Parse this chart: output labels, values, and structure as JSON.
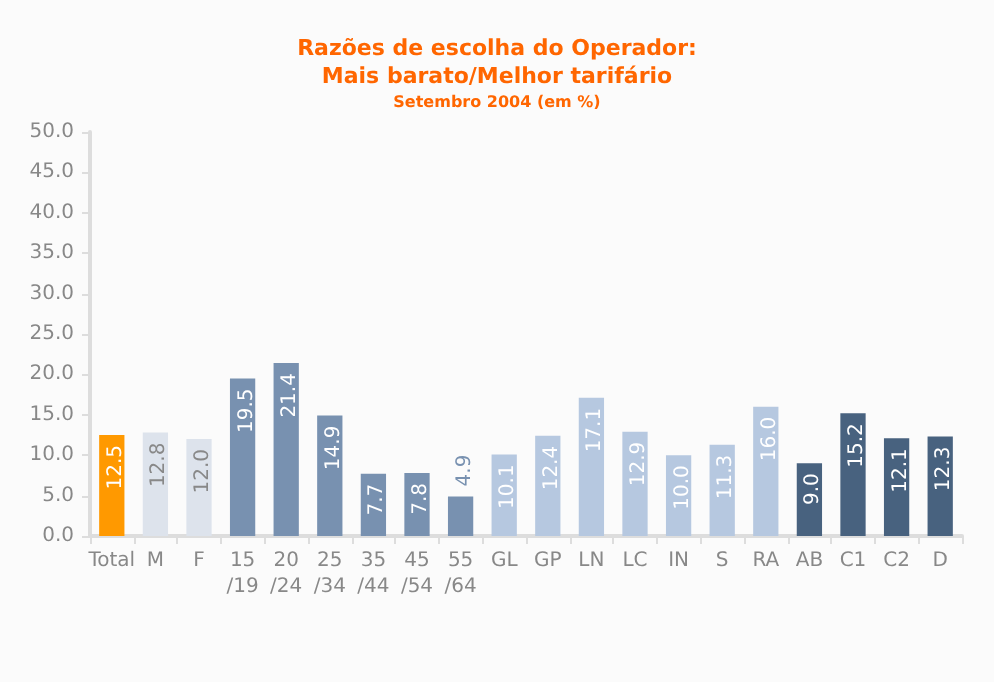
{
  "chart_data": {
    "type": "bar",
    "title": "Razões de escolha do Operador:\nMais barato/Melhor tarifário",
    "subtitle": "Setembro 2004 (em %)",
    "categories": [
      "Total",
      "M",
      "F",
      "15\n/19",
      "20\n/24",
      "25\n/34",
      "35\n/44",
      "45\n/54",
      "55\n/64",
      "GL",
      "GP",
      "LN",
      "LC",
      "IN",
      "S",
      "RA",
      "AB",
      "C1",
      "C2",
      "D"
    ],
    "values": [
      12.5,
      12.8,
      12.0,
      19.5,
      21.4,
      14.9,
      7.7,
      7.8,
      4.9,
      10.1,
      12.4,
      17.1,
      12.9,
      10.0,
      11.3,
      16.0,
      9.0,
      15.2,
      12.1,
      12.3
    ],
    "colors": [
      "#ff9900",
      "#dde3ec",
      "#dde3ec",
      "#7891b0",
      "#7891b0",
      "#7891b0",
      "#7891b0",
      "#7891b0",
      "#7891b0",
      "#b6c8e0",
      "#b6c8e0",
      "#b6c8e0",
      "#b6c8e0",
      "#b6c8e0",
      "#b6c8e0",
      "#b6c8e0",
      "#48627f",
      "#48627f",
      "#48627f",
      "#48627f"
    ],
    "ylim": [
      0,
      50
    ],
    "yticks": [
      {
        "value": 0,
        "label": "0.0"
      },
      {
        "value": 5,
        "label": "5.0"
      },
      {
        "value": 10,
        "label": "10.0"
      },
      {
        "value": 15,
        "label": "15.0"
      },
      {
        "value": 20,
        "label": "20.0"
      },
      {
        "value": 25,
        "label": "25.0"
      },
      {
        "value": 30,
        "label": "30.0"
      },
      {
        "value": 35,
        "label": "35.0"
      },
      {
        "value": 40,
        "label": "40.0"
      },
      {
        "value": 45,
        "label": "45.0"
      },
      {
        "value": 50,
        "label": "50.0"
      }
    ],
    "value_labels": [
      "12.5",
      "12.8",
      "12.0",
      "19.5",
      "21.4",
      "14.9",
      "7.7",
      "7.8",
      "4.9",
      "10.1",
      "12.4",
      "17.1",
      "12.9",
      "10.0",
      "11.3",
      "16.0",
      "9.0",
      "15.2",
      "12.1",
      "12.3"
    ],
    "grid": false
  }
}
